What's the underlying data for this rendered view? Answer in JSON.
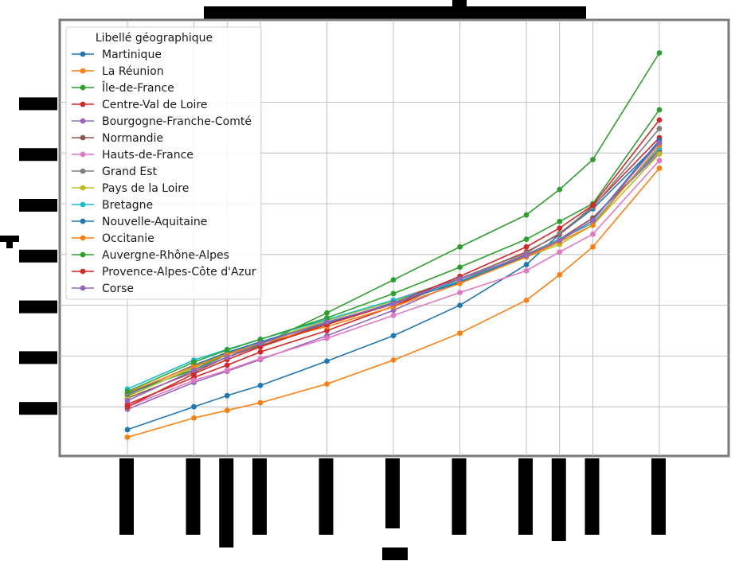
{
  "chart_data": {
    "type": "line",
    "title": "",
    "xlabel": "",
    "ylabel": "",
    "x": [
      1,
      2,
      2.5,
      3,
      4,
      5,
      6,
      7,
      7.5,
      8,
      9
    ],
    "xlim": [
      0,
      10
    ],
    "ylim": [
      0,
      8
    ],
    "grid": true,
    "legend": {
      "title": "Libellé géographique",
      "placement": "top-left"
    },
    "series": [
      {
        "name": "Martinique",
        "color": "#1f77b4",
        "values": [
          0.55,
          1.0,
          1.22,
          1.42,
          1.9,
          2.4,
          3.0,
          3.8,
          4.4,
          4.9,
          6.2
        ]
      },
      {
        "name": "La Réunion",
        "color": "#ff7f0e",
        "values": [
          0.4,
          0.78,
          0.93,
          1.08,
          1.45,
          1.92,
          2.45,
          3.1,
          3.6,
          4.15,
          5.7
        ]
      },
      {
        "name": "Île-de-France",
        "color": "#2ca02c",
        "values": [
          1.27,
          1.73,
          2.03,
          2.22,
          2.85,
          3.5,
          4.15,
          4.78,
          5.28,
          5.87,
          7.97
        ]
      },
      {
        "name": "Centre-Val de Loire",
        "color": "#d62728",
        "values": [
          1.05,
          1.58,
          1.82,
          2.08,
          2.5,
          2.98,
          3.52,
          4.05,
          4.4,
          4.95,
          6.3
        ]
      },
      {
        "name": "Bourgogne-Franche-Comté",
        "color": "#9467bd",
        "values": [
          0.95,
          1.48,
          1.7,
          1.93,
          2.4,
          2.9,
          3.47,
          3.97,
          4.3,
          4.72,
          6.0
        ]
      },
      {
        "name": "Normandie",
        "color": "#8c564b",
        "values": [
          1.17,
          1.68,
          1.98,
          2.2,
          2.65,
          3.02,
          3.48,
          4.0,
          4.3,
          4.72,
          6.05
        ]
      },
      {
        "name": "Hauts-de-France",
        "color": "#e377c2",
        "values": [
          1.0,
          1.52,
          1.72,
          1.95,
          2.35,
          2.8,
          3.25,
          3.68,
          4.05,
          4.4,
          5.85
        ]
      },
      {
        "name": "Grand Est",
        "color": "#7f7f7f",
        "values": [
          1.22,
          1.77,
          2.05,
          2.27,
          2.7,
          3.1,
          3.53,
          4.03,
          4.42,
          4.93,
          6.48
        ]
      },
      {
        "name": "Pays de la Loire",
        "color": "#bcbd22",
        "values": [
          1.2,
          1.78,
          2.07,
          2.27,
          2.7,
          3.08,
          3.45,
          3.95,
          4.2,
          4.58,
          5.98
        ]
      },
      {
        "name": "Bretagne",
        "color": "#17becf",
        "values": [
          1.35,
          1.92,
          2.13,
          2.33,
          2.72,
          3.1,
          3.47,
          3.98,
          4.3,
          4.62,
          6.1
        ]
      },
      {
        "name": "Nouvelle-Aquitaine",
        "color": "#1f77b4",
        "values": [
          1.25,
          1.82,
          2.07,
          2.28,
          2.65,
          3.05,
          3.45,
          3.97,
          4.27,
          4.67,
          6.25
        ]
      },
      {
        "name": "Occitanie",
        "color": "#ff7f0e",
        "values": [
          1.28,
          1.8,
          2.03,
          2.25,
          2.58,
          2.97,
          3.43,
          3.95,
          4.25,
          4.58,
          6.15
        ]
      },
      {
        "name": "Auvergne-Rhône-Alpes",
        "color": "#2ca02c",
        "values": [
          1.3,
          1.88,
          2.12,
          2.33,
          2.75,
          3.23,
          3.75,
          4.3,
          4.65,
          5.0,
          6.85
        ]
      },
      {
        "name": "Provence-Alpes-Côte d'Azur",
        "color": "#d62728",
        "values": [
          1.0,
          1.65,
          1.93,
          2.18,
          2.62,
          3.03,
          3.57,
          4.15,
          4.52,
          4.97,
          6.65
        ]
      },
      {
        "name": "Corse",
        "color": "#9467bd",
        "values": [
          1.12,
          1.72,
          1.98,
          2.25,
          2.67,
          3.03,
          3.52,
          3.98,
          4.28,
          4.67,
          6.2
        ]
      }
    ]
  }
}
